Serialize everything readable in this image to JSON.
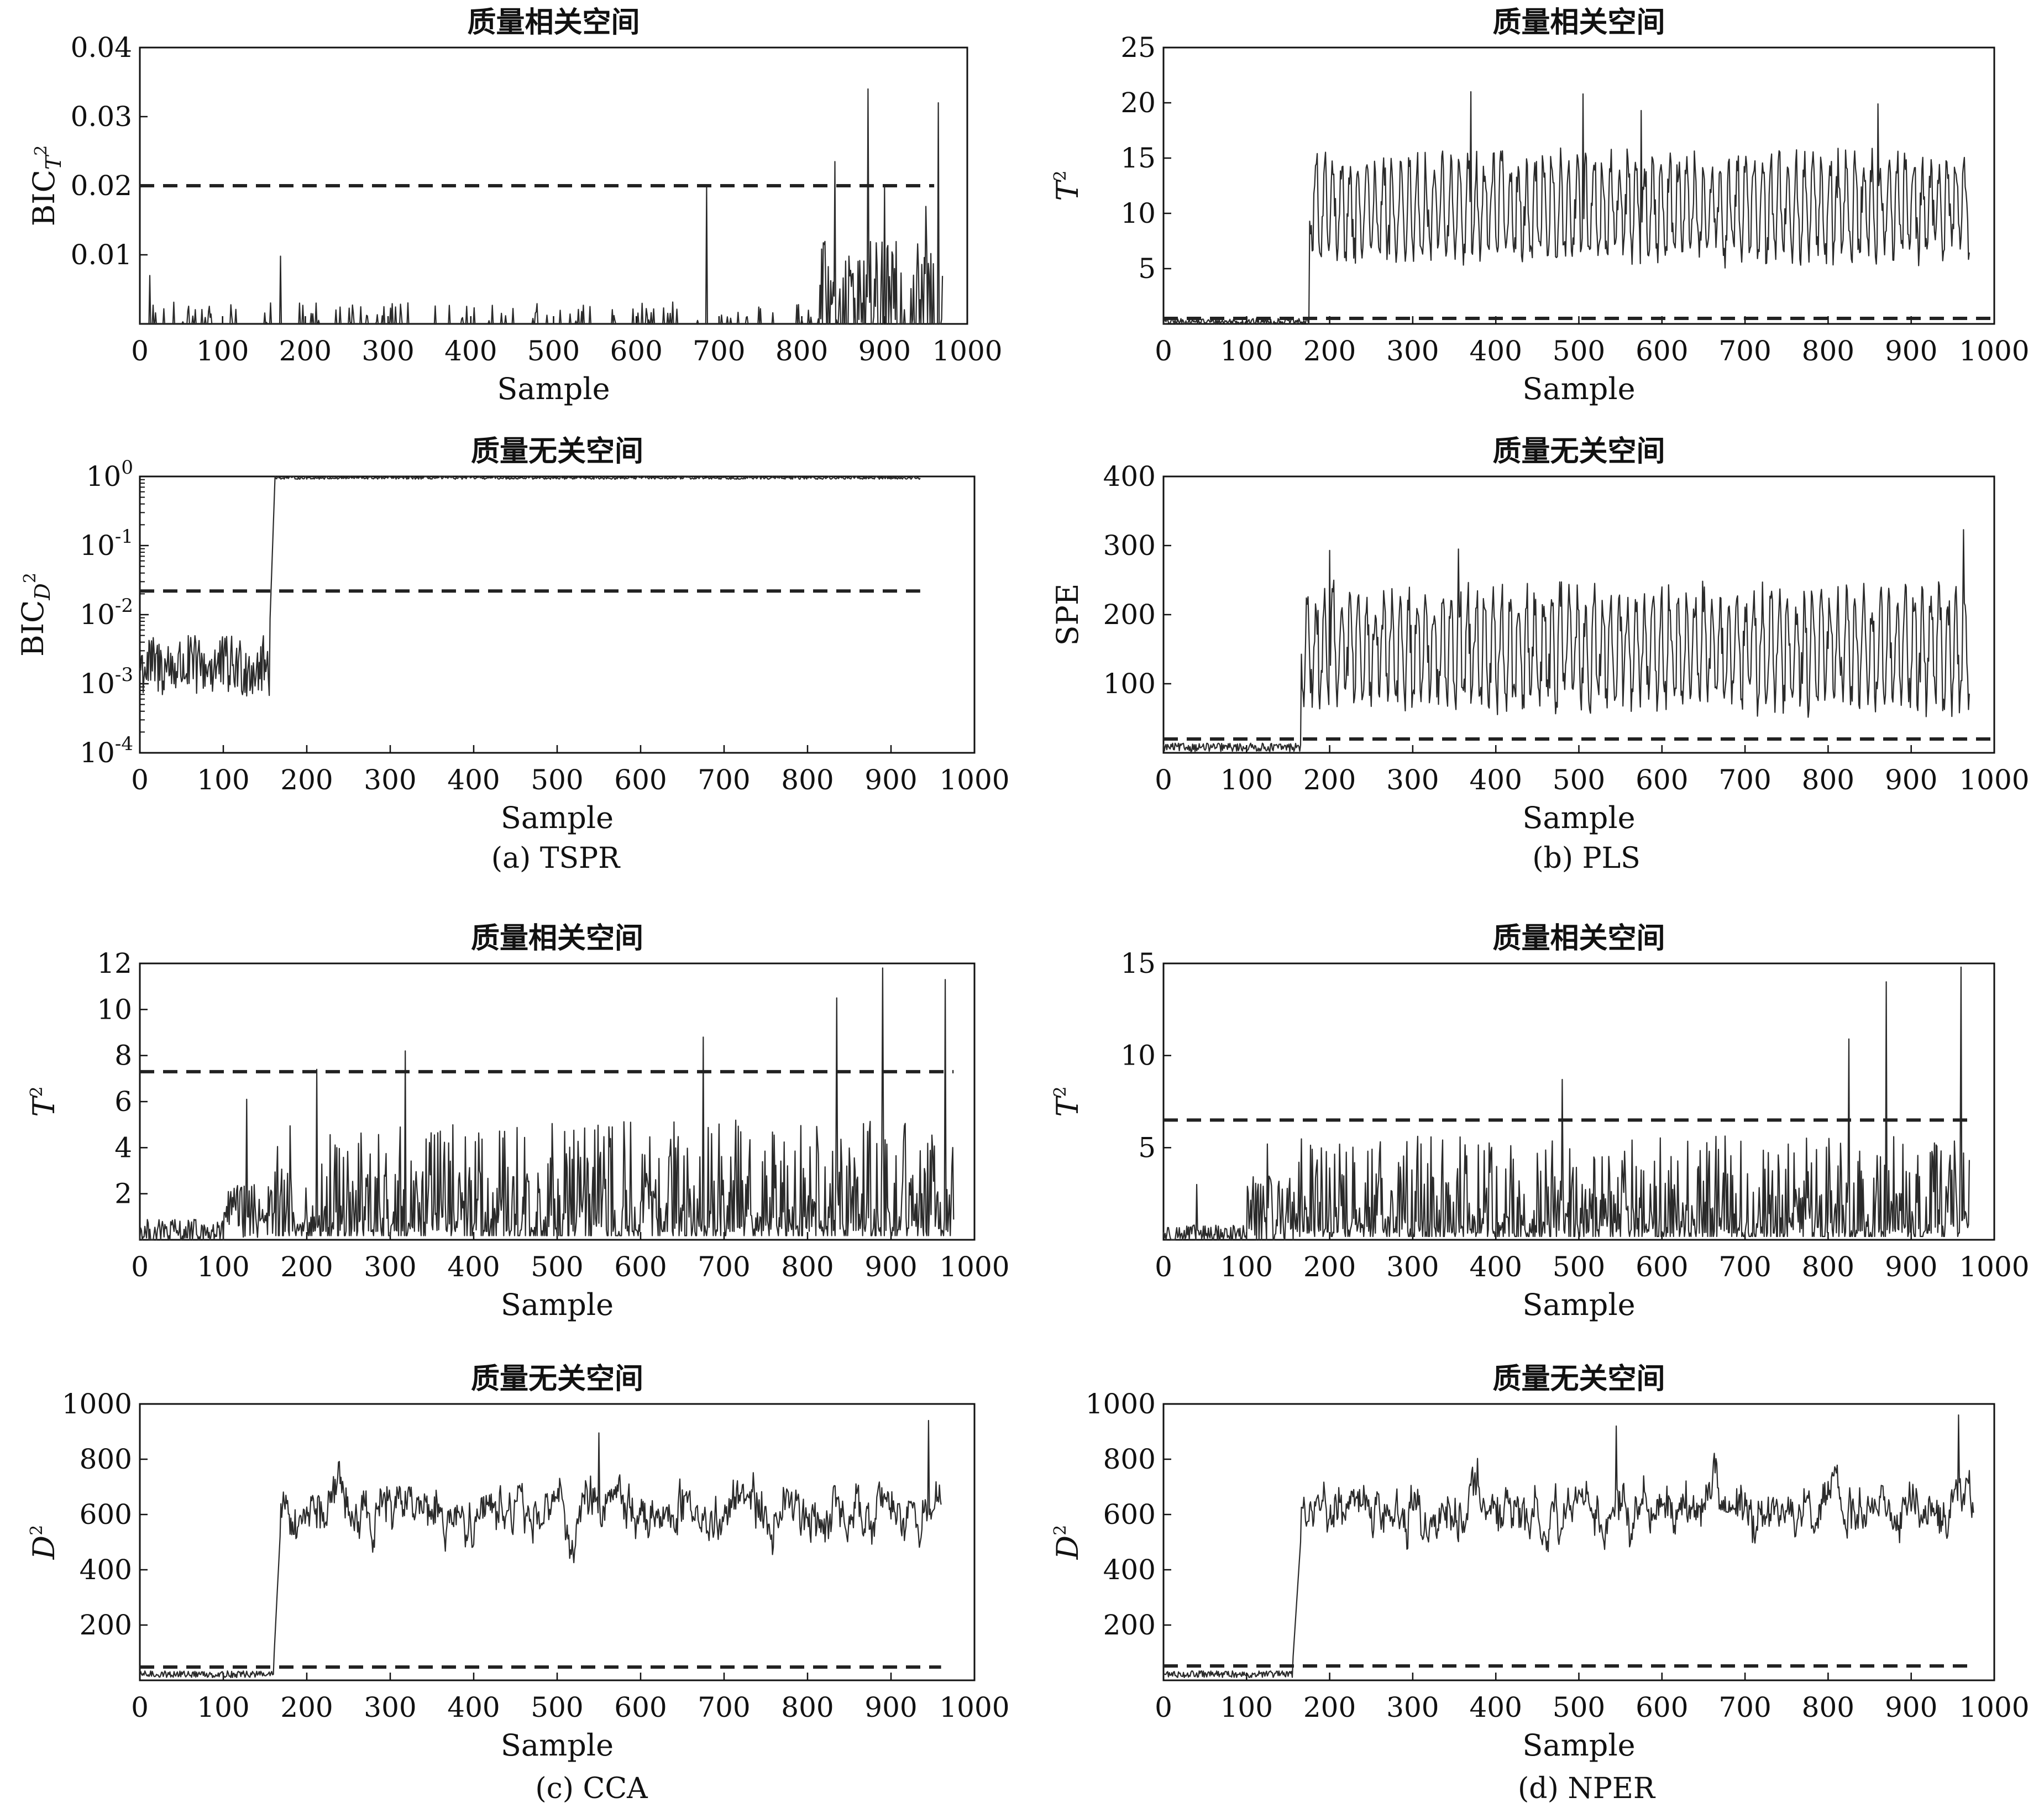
{
  "figure": {
    "captions": [
      "(a) TSPR",
      "(b) PLS",
      "(c) CCA",
      "(d) NPER"
    ]
  },
  "chart_data": [
    {
      "type": "line",
      "id": "a-top",
      "title": "质量相关空间",
      "xlabel": "Sample",
      "ylabel_main": "BIC",
      "ylabel_sub": "T",
      "ylabel_sup": "2",
      "xlim": [
        0,
        1000
      ],
      "ylim": [
        0,
        0.04
      ],
      "xticks": [
        0,
        100,
        200,
        300,
        400,
        500,
        600,
        700,
        800,
        900,
        1000
      ],
      "yticks": [
        0.01,
        0.02,
        0.03,
        0.04
      ],
      "ytick_labels": [
        "0.01",
        "0.02",
        "0.03",
        "0.04"
      ],
      "control_limit": 0.02,
      "limit_x": [
        0,
        960
      ],
      "series": [
        {
          "x_end": 970,
          "segments": [
            {
              "from": 0,
              "to": 820,
              "base": 0.0002,
              "amp": 0.003,
              "sparse": true
            },
            {
              "from": 820,
              "to": 970,
              "base": 0.002,
              "amp": 0.01
            }
          ],
          "spikes": [
            [
              12,
              0.007
            ],
            [
              170,
              0.0098
            ],
            [
              685,
              0.0199
            ],
            [
              840,
              0.0235
            ],
            [
              880,
              0.034
            ],
            [
              900,
              0.02
            ],
            [
              950,
              0.017
            ],
            [
              965,
              0.032
            ]
          ]
        }
      ]
    },
    {
      "type": "line",
      "id": "b-top",
      "title": "质量相关空间",
      "xlabel": "Sample",
      "ylabel_main": "T",
      "ylabel_sup": "2",
      "xlim": [
        0,
        1000
      ],
      "ylim": [
        0,
        25
      ],
      "xticks": [
        0,
        100,
        200,
        300,
        400,
        500,
        600,
        700,
        800,
        900,
        1000
      ],
      "yticks": [
        5,
        10,
        15,
        20,
        25
      ],
      "control_limit": 0.5,
      "limit_x": [
        0,
        1000
      ],
      "series": [
        {
          "x_end": 970,
          "segments": [
            {
              "from": 0,
              "to": 175,
              "base": 0.2,
              "amp": 0.3
            },
            {
              "from": 175,
              "to": 970,
              "base": 10.5,
              "amp": 5.5,
              "osc": true
            }
          ],
          "spikes": [
            [
              370,
              21
            ],
            [
              505,
              20.8
            ],
            [
              575,
              19.3
            ],
            [
              860,
              19.9
            ]
          ]
        }
      ]
    },
    {
      "type": "line",
      "id": "a-bottom",
      "title": "质量无关空间",
      "log": true,
      "xlabel": "Sample",
      "ylabel_main": "BIC",
      "ylabel_sub": "D",
      "ylabel_sup": "2",
      "xlim": [
        0,
        1000
      ],
      "ylim": [
        0.0001,
        1
      ],
      "xticks": [
        0,
        100,
        200,
        300,
        400,
        500,
        600,
        700,
        800,
        900,
        1000
      ],
      "yticks_exp": [
        -4,
        -3,
        -2,
        -1,
        0
      ],
      "control_limit": 0.022,
      "limit_x": [
        0,
        935
      ],
      "series": [
        {
          "x_end": 935,
          "segments": [
            {
              "from": 0,
              "to": 155,
              "logbase": -2.75,
              "logamp": 0.45
            },
            {
              "from": 155,
              "to": 162,
              "ramp": [
                -2.4,
                0
              ]
            },
            {
              "from": 162,
              "to": 935,
              "logbase": -0.02,
              "logamp": 0.02
            }
          ]
        }
      ]
    },
    {
      "type": "line",
      "id": "b-bottom",
      "title": "质量无关空间",
      "xlabel": "Sample",
      "ylabel_main": "SPE",
      "xlim": [
        0,
        1000
      ],
      "ylim": [
        0,
        400
      ],
      "xticks": [
        0,
        100,
        200,
        300,
        400,
        500,
        600,
        700,
        800,
        900,
        1000
      ],
      "yticks": [
        100,
        200,
        300,
        400
      ],
      "control_limit": 20,
      "limit_x": [
        0,
        1000
      ],
      "series": [
        {
          "x_end": 970,
          "segments": [
            {
              "from": 0,
              "to": 165,
              "base": 8,
              "amp": 6
            },
            {
              "from": 165,
              "to": 970,
              "base": 150,
              "amp": 100,
              "osc": true
            }
          ],
          "spikes": [
            [
              200,
              293
            ],
            [
              355,
              295
            ],
            [
              963,
              323
            ]
          ]
        }
      ]
    },
    {
      "type": "line",
      "id": "c-top",
      "title": "质量相关空间",
      "xlabel": "Sample",
      "ylabel_main": "T",
      "ylabel_sup": "2",
      "xlim": [
        0,
        1000
      ],
      "ylim": [
        0,
        12
      ],
      "xticks": [
        0,
        100,
        200,
        300,
        400,
        500,
        600,
        700,
        800,
        900,
        1000
      ],
      "yticks": [
        2,
        4,
        6,
        8,
        10,
        12
      ],
      "control_limit": 7.3,
      "limit_x": [
        0,
        975
      ],
      "series": [
        {
          "x_end": 975,
          "segments": [
            {
              "from": 0,
              "to": 100,
              "base": 0.3,
              "amp": 0.6
            },
            {
              "from": 100,
              "to": 160,
              "base": 1.2,
              "amp": 1.2
            },
            {
              "from": 160,
              "to": 975,
              "base": 1.2,
              "amp": 2.2,
              "spiky": true
            }
          ],
          "spikes": [
            [
              128,
              6.1
            ],
            [
              212,
              7.4
            ],
            [
              318,
              8.2
            ],
            [
              675,
              8.8
            ],
            [
              835,
              10.5
            ],
            [
              890,
              11.8
            ],
            [
              965,
              11.3
            ]
          ]
        }
      ]
    },
    {
      "type": "line",
      "id": "d-top",
      "title": "质量相关空间",
      "xlabel": "Sample",
      "ylabel_main": "T",
      "ylabel_sup": "2",
      "xlim": [
        0,
        1000
      ],
      "ylim": [
        0,
        15
      ],
      "xticks": [
        0,
        100,
        200,
        300,
        400,
        500,
        600,
        700,
        800,
        900,
        1000
      ],
      "yticks": [
        5,
        10,
        15
      ],
      "control_limit": 6.5,
      "limit_x": [
        0,
        970
      ],
      "series": [
        {
          "x_end": 970,
          "segments": [
            {
              "from": 0,
              "to": 100,
              "base": 0.3,
              "amp": 0.5
            },
            {
              "from": 100,
              "to": 160,
              "base": 1.5,
              "amp": 2
            },
            {
              "from": 160,
              "to": 970,
              "base": 1.2,
              "amp": 2.4,
              "spiky": true
            }
          ],
          "spikes": [
            [
              40,
              3
            ],
            [
              125,
              5.2
            ],
            [
              480,
              8.7
            ],
            [
              825,
              10.9
            ],
            [
              870,
              14
            ],
            [
              960,
              14.8
            ]
          ]
        }
      ]
    },
    {
      "type": "line",
      "id": "c-bottom",
      "title": "质量无关空间",
      "xlabel": "Sample",
      "ylabel_main": "D",
      "ylabel_sup": "2",
      "xlim": [
        0,
        1000
      ],
      "ylim": [
        0,
        1000
      ],
      "xticks": [
        0,
        100,
        200,
        300,
        400,
        500,
        600,
        700,
        800,
        900,
        1000
      ],
      "yticks": [
        200,
        400,
        600,
        800,
        1000
      ],
      "control_limit": 48,
      "limit_x": [
        0,
        960
      ],
      "series": [
        {
          "x_end": 960,
          "segments": [
            {
              "from": 0,
              "to": 160,
              "base": 22,
              "amp": 12
            },
            {
              "from": 160,
              "to": 168,
              "ramp": [
                40,
                520
              ]
            },
            {
              "from": 168,
              "to": 960,
              "base": 600,
              "amp": 120,
              "walk": true
            }
          ],
          "spikes": [
            [
              550,
              895
            ],
            [
              945,
              940
            ]
          ]
        }
      ]
    },
    {
      "type": "line",
      "id": "d-bottom",
      "title": "质量无关空间",
      "xlabel": "Sample",
      "ylabel_main": "D",
      "ylabel_sup": "2",
      "xlim": [
        0,
        1000
      ],
      "ylim": [
        0,
        1000
      ],
      "xticks": [
        0,
        100,
        200,
        300,
        400,
        500,
        600,
        700,
        800,
        900,
        1000
      ],
      "yticks": [
        200,
        400,
        600,
        800,
        1000
      ],
      "control_limit": 52,
      "limit_x": [
        0,
        975
      ],
      "series": [
        {
          "x_end": 975,
          "segments": [
            {
              "from": 0,
              "to": 155,
              "base": 22,
              "amp": 12
            },
            {
              "from": 155,
              "to": 165,
              "ramp": [
                40,
                500
              ]
            },
            {
              "from": 165,
              "to": 975,
              "base": 620,
              "amp": 120,
              "walk": true
            }
          ],
          "spikes": [
            [
              545,
              920
            ],
            [
              957,
              960
            ]
          ]
        }
      ]
    }
  ]
}
